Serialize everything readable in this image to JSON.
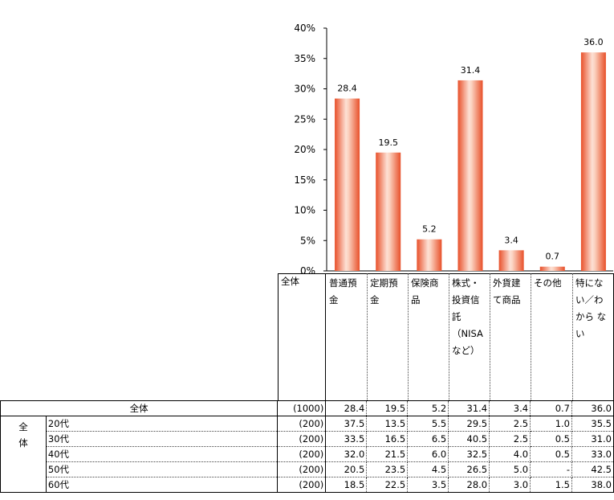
{
  "chart_data": {
    "type": "bar",
    "categories": [
      "普通預金",
      "定期預金",
      "保険商品",
      "株式・投資信託（NISAなど）",
      "外貨建て商品",
      "その他",
      "特にない／わからない"
    ],
    "values": [
      28.4,
      19.5,
      5.2,
      31.4,
      3.4,
      0.7,
      36.0
    ],
    "value_labels": [
      "28.4",
      "19.5",
      "5.2",
      "31.4",
      "3.4",
      "0.7",
      "36.0"
    ],
    "y_ticks": [
      "0%",
      "5%",
      "10%",
      "15%",
      "20%",
      "25%",
      "30%",
      "35%",
      "40%"
    ],
    "ylim": [
      0,
      40
    ],
    "grid": false,
    "bar_color": "#f07850"
  },
  "table": {
    "total_header": "全体",
    "header_lines": [
      [
        "普通預",
        "金"
      ],
      [
        "定期預",
        "金"
      ],
      [
        "保険商",
        "品"
      ],
      [
        "株式・",
        "投資信",
        "託",
        "（NISA",
        "など）"
      ],
      [
        "外貨建",
        "て商品"
      ],
      [
        "その他"
      ],
      [
        "特にな",
        "い／わ",
        "から な",
        "い"
      ]
    ],
    "total_row": {
      "label": "全体",
      "count": "(1000)",
      "values": [
        "28.4",
        "19.5",
        "5.2",
        "31.4",
        "3.4",
        "0.7",
        "36.0"
      ]
    },
    "group_label": [
      "全",
      "体"
    ],
    "rows": [
      {
        "label": "20代",
        "count": "(200)",
        "values": [
          "37.5",
          "13.5",
          "5.5",
          "29.5",
          "2.5",
          "1.0",
          "35.5"
        ]
      },
      {
        "label": "30代",
        "count": "(200)",
        "values": [
          "33.5",
          "16.5",
          "6.5",
          "40.5",
          "2.5",
          "0.5",
          "31.0"
        ]
      },
      {
        "label": "40代",
        "count": "(200)",
        "values": [
          "32.0",
          "21.5",
          "6.0",
          "32.5",
          "4.0",
          "0.5",
          "33.0"
        ]
      },
      {
        "label": "50代",
        "count": "(200)",
        "values": [
          "20.5",
          "23.5",
          "4.5",
          "26.5",
          "5.0",
          "-",
          "42.5"
        ]
      },
      {
        "label": "60代",
        "count": "(200)",
        "values": [
          "18.5",
          "22.5",
          "3.5",
          "28.0",
          "3.0",
          "1.5",
          "38.0"
        ]
      }
    ]
  }
}
